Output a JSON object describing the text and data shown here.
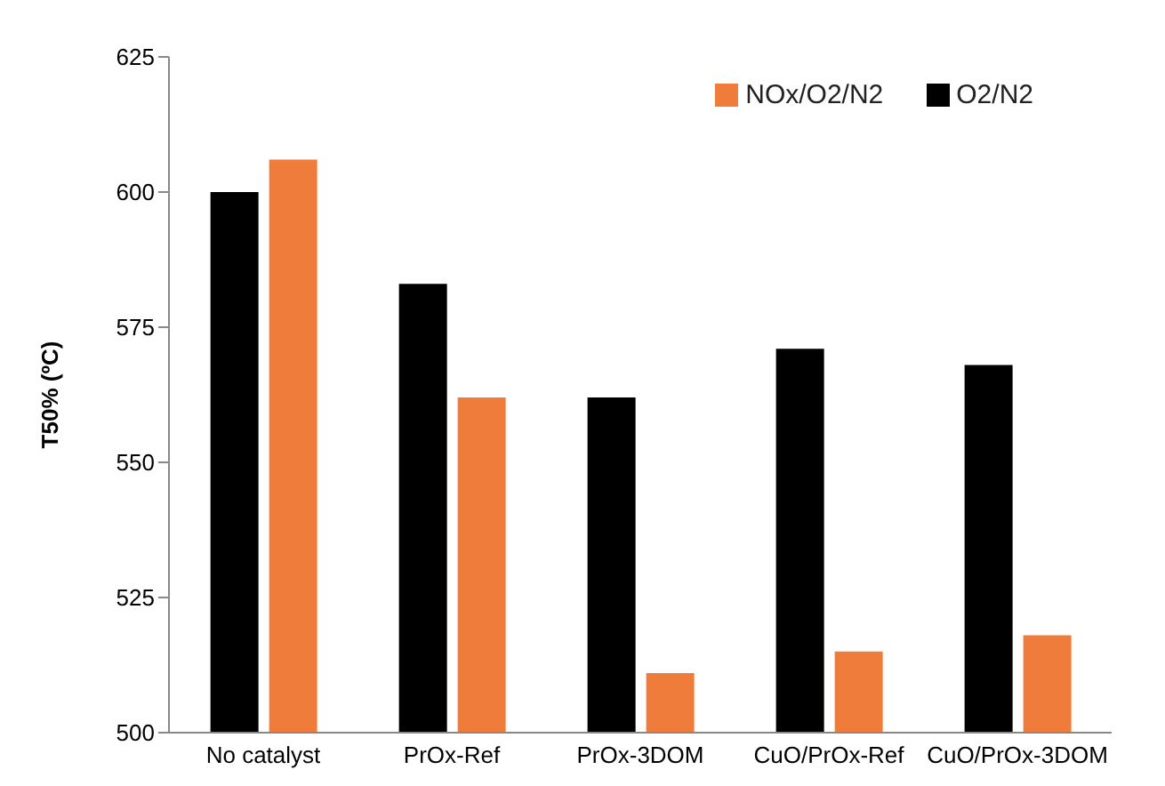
{
  "chart_data": {
    "type": "bar",
    "ylabel": "T50% (ºC)",
    "categories": [
      "No catalyst",
      "PrOx-Ref",
      "PrOx-3DOM",
      "CuO/PrOx-Ref",
      "CuO/PrOx-3DOM"
    ],
    "series": [
      {
        "name": "O2/N2",
        "color": "#000000",
        "values": [
          600,
          583,
          562,
          571,
          568
        ]
      },
      {
        "name": "NOx/O2/N2",
        "color": "#f07c3c",
        "values": [
          606,
          562,
          511,
          515,
          518
        ]
      }
    ],
    "ylim": [
      500,
      625
    ],
    "yticks": [
      500,
      525,
      550,
      575,
      600,
      625
    ],
    "grid": false,
    "legend": "top right"
  }
}
